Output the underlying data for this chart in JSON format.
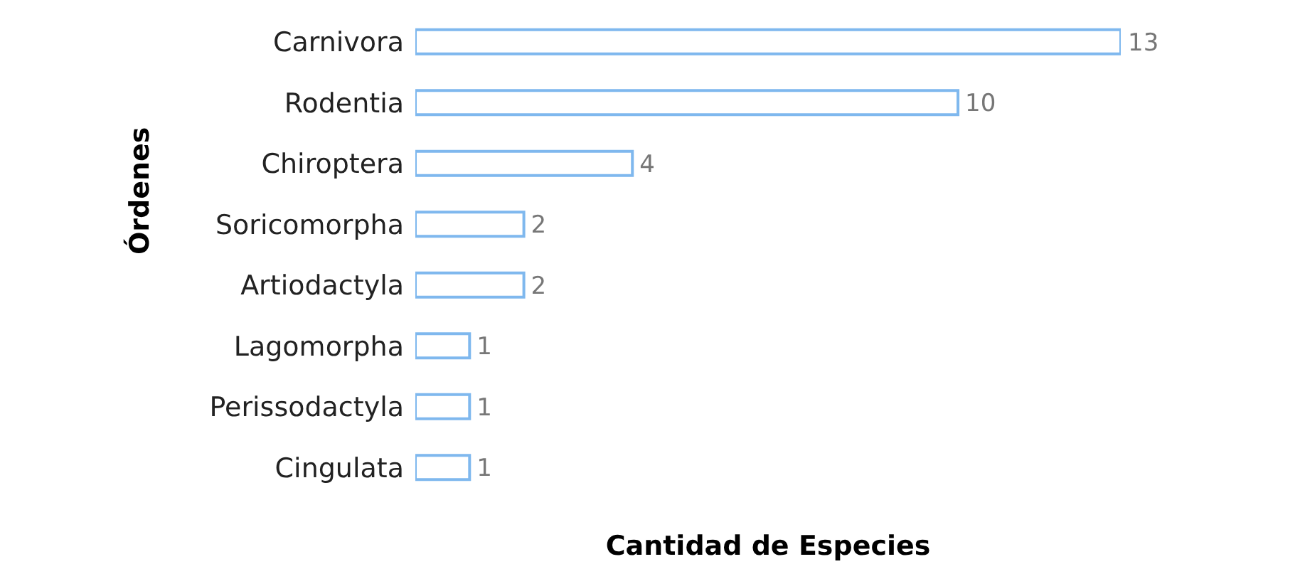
{
  "chart_data": {
    "type": "bar",
    "orientation": "horizontal",
    "xlabel": "Cantidad de Especies",
    "ylabel": "Órdenes",
    "categories": [
      "Carnivora",
      "Rodentia",
      "Chiroptera",
      "Soricomorpha",
      "Artiodactyla",
      "Lagomorpha",
      "Perissodactyla",
      "Cingulata"
    ],
    "values": [
      13,
      10,
      4,
      2,
      2,
      1,
      1,
      1
    ],
    "color": "#7fb8ee",
    "data_labels": true,
    "grid": false,
    "legend": false
  }
}
